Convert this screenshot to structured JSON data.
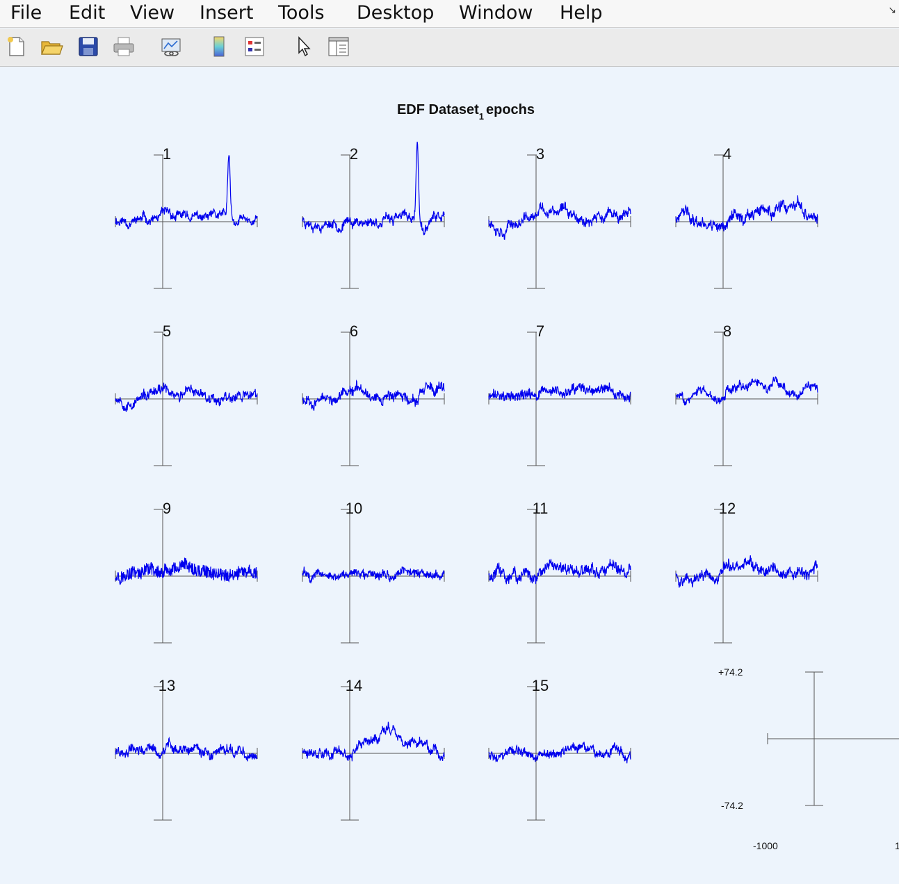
{
  "menu": {
    "items": [
      "File",
      "Edit",
      "View",
      "Insert",
      "Tools",
      "Desktop",
      "Window",
      "Help"
    ]
  },
  "toolbar": {
    "buttons": [
      "new-figure",
      "open-file",
      "save",
      "print",
      "link-plot",
      "insert-colorbar",
      "insert-legend",
      "edit-plot-pointer",
      "property-inspector"
    ]
  },
  "figure": {
    "title_main": "EDF Dataset",
    "title_sub": "1",
    "title_end": "epochs"
  },
  "colors": {
    "trace": "#0000ee",
    "axis": "#555555",
    "background": "#edf4fc"
  },
  "scale_axis": {
    "ymax_label": "+74.2",
    "ymin_label": "-74.2",
    "xmin_label": "-1000",
    "xmax_label": "1"
  },
  "chart_data": {
    "type": "line",
    "title": "EDF Dataset_1 epochs",
    "epochs": [
      {
        "label": "1",
        "seed": 11,
        "noise": 1.0,
        "spike": {
          "pos": 0.8,
          "height": 75
        },
        "trend": 0,
        "wander": 1.0
      },
      {
        "label": "2",
        "seed": 23,
        "noise": 1.0,
        "spike": {
          "pos": 0.81,
          "height": 95
        },
        "trend": 0,
        "wander": 1.0
      },
      {
        "label": "3",
        "seed": 37,
        "noise": 1.1,
        "spike": null,
        "trend": 8,
        "wander": 1.2
      },
      {
        "label": "4",
        "seed": 41,
        "noise": 1.3,
        "spike": null,
        "trend": 8,
        "wander": 1.4
      },
      {
        "label": "5",
        "seed": 53,
        "noise": 1.1,
        "spike": null,
        "trend": 4,
        "wander": 1.1
      },
      {
        "label": "6",
        "seed": 67,
        "noise": 1.1,
        "spike": null,
        "trend": 6,
        "wander": 1.2
      },
      {
        "label": "7",
        "seed": 71,
        "noise": 1.2,
        "spike": null,
        "trend": 3,
        "wander": 1.0
      },
      {
        "label": "8",
        "seed": 83,
        "noise": 0.9,
        "spike": null,
        "trend": 14,
        "wander": 1.0
      },
      {
        "label": "9",
        "seed": 97,
        "noise": 2.0,
        "spike": null,
        "trend": 0,
        "wander": 0.6
      },
      {
        "label": "10",
        "seed": 101,
        "noise": 1.0,
        "spike": null,
        "trend": 4,
        "wander": 1.0
      },
      {
        "label": "11",
        "seed": 113,
        "noise": 1.4,
        "spike": null,
        "trend": 7,
        "wander": 1.2
      },
      {
        "label": "12",
        "seed": 127,
        "noise": 1.2,
        "spike": null,
        "trend": 6,
        "wander": 1.3
      },
      {
        "label": "13",
        "seed": 131,
        "noise": 1.1,
        "spike": null,
        "trend": 4,
        "wander": 1.1
      },
      {
        "label": "14",
        "seed": 149,
        "noise": 1.0,
        "spike": null,
        "trend": 12,
        "wander": 1.3
      },
      {
        "label": "15",
        "seed": 157,
        "noise": 1.0,
        "spike": null,
        "trend": 3,
        "wander": 1.0
      }
    ],
    "xlim": [
      -1000,
      2000
    ],
    "ylim": [
      -74.2,
      74.2
    ],
    "grid": false
  }
}
